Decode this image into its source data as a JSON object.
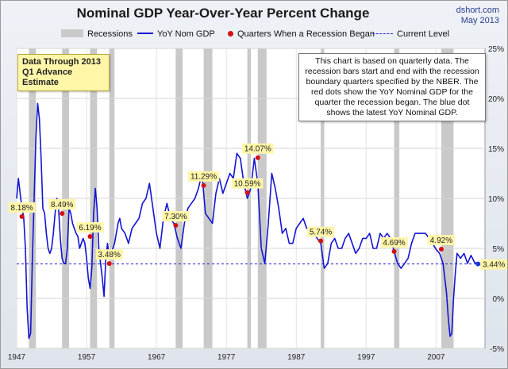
{
  "title": "Nominal GDP Year-Over-Year Percent Change",
  "source": {
    "site": "dshort.com",
    "date": "May 2013"
  },
  "legend": {
    "recessions": "Recessions",
    "series": "YoY Nom GDP",
    "dots": "Quarters When a Recession Began",
    "current": "Current Level"
  },
  "data_through": {
    "line1": "Data Through 2013",
    "line2": "Q1 Advance Estimate"
  },
  "note": "This chart is based on quarterly data. The recession bars start and end with the recession boundary quarters specified by the NBER. The red dots show the YoY Nominal GDP for the quarter the recession began. The blue dot shows the latest YoY Nominal GDP.",
  "colors": {
    "line": "#1414d2",
    "recession_dot": "#d41010",
    "recession_band": "#c9c9c9",
    "label_bg": "#fff6a8",
    "current_line": "#2222cc"
  },
  "chart_data": {
    "type": "line",
    "title": "Nominal GDP Year-Over-Year Percent Change",
    "xlabel": "",
    "ylabel": "",
    "xlim": [
      1947,
      2014
    ],
    "ylim": [
      -5,
      25
    ],
    "x_ticks": [
      "1947",
      "1957",
      "1967",
      "1977",
      "1987",
      "1997",
      "2007"
    ],
    "y_ticks": [
      "-5%",
      "0%",
      "5%",
      "10%",
      "15%",
      "20%",
      "25%"
    ],
    "grid": true,
    "series": [
      {
        "name": "YoY Nom GDP",
        "x": [
          1947.0,
          1947.25,
          1947.5,
          1947.75,
          1948.0,
          1948.25,
          1948.5,
          1948.75,
          1949.0,
          1949.25,
          1949.5,
          1949.75,
          1950.0,
          1950.25,
          1950.5,
          1950.75,
          1951.0,
          1951.25,
          1951.5,
          1951.75,
          1952.0,
          1952.25,
          1952.5,
          1952.75,
          1953.0,
          1953.25,
          1953.5,
          1953.75,
          1954.0,
          1954.25,
          1954.5,
          1954.75,
          1955.0,
          1955.25,
          1955.5,
          1955.75,
          1956.0,
          1956.25,
          1956.5,
          1956.75,
          1957.0,
          1957.25,
          1957.5,
          1957.75,
          1958.0,
          1958.25,
          1958.5,
          1958.75,
          1959.0,
          1959.25,
          1959.5,
          1959.75,
          1960.0,
          1960.25,
          1960.5,
          1960.75,
          1961.0,
          1961.25,
          1961.5,
          1961.75,
          1962.0,
          1962.5,
          1963.0,
          1963.5,
          1964.0,
          1964.5,
          1965.0,
          1965.5,
          1966.0,
          1966.5,
          1967.0,
          1967.5,
          1968.0,
          1968.5,
          1969.0,
          1969.5,
          1970.0,
          1970.5,
          1971.0,
          1971.5,
          1972.0,
          1972.5,
          1973.0,
          1973.5,
          1974.0,
          1974.5,
          1975.0,
          1975.5,
          1976.0,
          1976.5,
          1977.0,
          1977.5,
          1978.0,
          1978.5,
          1979.0,
          1979.5,
          1980.0,
          1980.5,
          1981.0,
          1981.5,
          1982.0,
          1982.5,
          1983.0,
          1983.5,
          1984.0,
          1984.5,
          1985.0,
          1985.5,
          1986.0,
          1986.5,
          1987.0,
          1987.5,
          1988.0,
          1988.5,
          1989.0,
          1989.5,
          1990.0,
          1990.5,
          1991.0,
          1991.5,
          1992.0,
          1992.5,
          1993.0,
          1993.5,
          1994.0,
          1994.5,
          1995.0,
          1995.5,
          1996.0,
          1996.5,
          1997.0,
          1997.5,
          1998.0,
          1998.5,
          1999.0,
          1999.5,
          2000.0,
          2000.5,
          2001.0,
          2001.5,
          2002.0,
          2002.5,
          2003.0,
          2003.5,
          2004.0,
          2004.5,
          2005.0,
          2005.5,
          2006.0,
          2006.5,
          2007.0,
          2007.5,
          2008.0,
          2008.25,
          2008.5,
          2008.75,
          2009.0,
          2009.25,
          2009.5,
          2009.75,
          2010.0,
          2010.5,
          2011.0,
          2011.5,
          2012.0,
          2012.5,
          2013.0
        ],
        "values": [
          10.0,
          12.0,
          10.5,
          9.0,
          8.2,
          5.0,
          -1.0,
          -4.0,
          -3.5,
          4.0,
          10.0,
          16.0,
          19.5,
          18.0,
          14.0,
          9.0,
          8.5,
          6.5,
          5.0,
          4.5,
          5.0,
          6.5,
          8.5,
          10.0,
          9.0,
          6.0,
          4.0,
          3.5,
          3.5,
          5.0,
          9.0,
          8.5,
          7.5,
          7.0,
          6.5,
          6.2,
          5.0,
          5.5,
          6.0,
          5.5,
          4.0,
          2.0,
          1.0,
          3.0,
          8.5,
          11.0,
          9.0,
          5.0,
          3.5,
          2.0,
          0.2,
          4.0,
          5.5,
          4.0,
          4.5,
          5.0,
          5.5,
          6.5,
          7.5,
          8.0,
          7.0,
          6.5,
          5.5,
          7.0,
          7.5,
          8.0,
          9.5,
          10.0,
          11.5,
          9.0,
          6.5,
          5.0,
          8.0,
          9.5,
          8.0,
          7.5,
          6.0,
          5.0,
          7.5,
          9.0,
          9.5,
          10.0,
          11.0,
          12.5,
          8.5,
          8.0,
          7.5,
          10.5,
          12.0,
          10.5,
          11.5,
          12.5,
          12.0,
          14.5,
          14.0,
          11.5,
          10.0,
          11.0,
          14.0,
          11.5,
          5.0,
          3.5,
          7.5,
          12.5,
          11.0,
          9.0,
          6.5,
          7.0,
          5.5,
          5.5,
          7.0,
          7.5,
          8.0,
          7.0,
          7.0,
          6.5,
          6.0,
          5.5,
          3.0,
          3.5,
          5.5,
          6.0,
          5.0,
          5.0,
          6.0,
          6.5,
          5.5,
          4.5,
          5.0,
          6.0,
          6.0,
          6.5,
          5.0,
          5.0,
          6.5,
          6.0,
          6.5,
          6.0,
          4.7,
          3.5,
          3.0,
          3.5,
          4.0,
          5.5,
          6.5,
          6.5,
          6.5,
          6.5,
          6.0,
          5.5,
          4.9,
          4.5,
          3.5,
          2.0,
          0.5,
          -2.0,
          -3.8,
          -3.5,
          0.0,
          2.5,
          4.5,
          4.0,
          4.5,
          3.5,
          4.3,
          3.6,
          3.44
        ]
      }
    ],
    "recessions": [
      [
        1948.75,
        1949.75
      ],
      [
        1953.5,
        1954.5
      ],
      [
        1957.5,
        1958.5
      ],
      [
        1960.25,
        1961.0
      ],
      [
        1969.75,
        1970.75
      ],
      [
        1973.75,
        1975.0
      ],
      [
        1980.0,
        1980.5
      ],
      [
        1981.5,
        1982.75
      ],
      [
        1990.5,
        1991.0
      ],
      [
        2001.0,
        2001.75
      ],
      [
        2007.75,
        2009.5
      ]
    ],
    "recession_points": [
      {
        "x": 1947.75,
        "value": 8.18,
        "label": "8.18%"
      },
      {
        "x": 1953.5,
        "value": 8.49,
        "label": "8.49%"
      },
      {
        "x": 1957.5,
        "value": 6.19,
        "label": "6.19%"
      },
      {
        "x": 1960.25,
        "value": 3.48,
        "label": "3.48%"
      },
      {
        "x": 1969.75,
        "value": 7.3,
        "label": "7.30%"
      },
      {
        "x": 1973.75,
        "value": 11.29,
        "label": "11.29%"
      },
      {
        "x": 1980.0,
        "value": 10.59,
        "label": "10.59%"
      },
      {
        "x": 1981.5,
        "value": 14.07,
        "label": "14.07%"
      },
      {
        "x": 1990.5,
        "value": 5.74,
        "label": "5.74%"
      },
      {
        "x": 2001.0,
        "value": 4.69,
        "label": "4.69%"
      },
      {
        "x": 2007.75,
        "value": 4.92,
        "label": "4.92%"
      }
    ],
    "current_level": {
      "value": 3.44,
      "x": 2013.0,
      "label": "3.44%"
    }
  }
}
